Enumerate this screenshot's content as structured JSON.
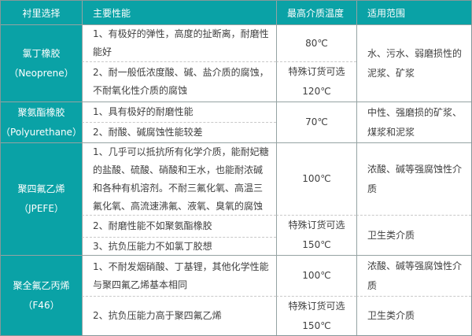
{
  "colors": {
    "teal": "#0aa2a6",
    "border_solid": "#95a3a3",
    "border_dashed": "#c9c9c9",
    "body_text": "#404040",
    "header_text": "#ffffff"
  },
  "header": {
    "lining": "衬里选择",
    "performance": "主要性能",
    "max_temp": "最高介质温度",
    "range": "适用范围"
  },
  "sections": [
    {
      "name": "氯丁橡胶",
      "alias": "（Neoprene）",
      "perf1": "1、有极好的弹性，高度的扯断离，耐磨性能好",
      "perf2": "2、耐一般低浓度酸、碱、盐介质的腐蚀，不耐氧化性介质的腐蚀",
      "temp1": "80℃",
      "temp2": "特殊订货可选\n120℃",
      "range1": "水、污水、弱磨损性的泥浆、矿浆"
    },
    {
      "name": "聚氨酯橡胶",
      "alias": "（Polyurethane）",
      "perf1": "1、具有极好的耐磨性能",
      "perf2": "2、耐酸、碱腐蚀性能较差",
      "temp1": "70℃",
      "range1": "中性、强磨损的矿浆、煤浆和泥浆"
    },
    {
      "name": "聚四氟乙烯",
      "alias": "（JPEFE）",
      "perf1": "1、几乎可以抵抗所有化学介质，能耐妃糖的盐酸、硫酸、硝酸和王水，也能耐浓碱和各种有机溶剂。不耐三氟化氧、高温三氟化氧、高流速沸氟、液氧、臭氧的腐蚀",
      "perf2": "2、耐磨性能不如聚氨酯橡胶",
      "perf3": "3、抗负压能力不如氯丁胶想",
      "temp1": "100℃",
      "temp2": "特殊订货可选\n150℃",
      "range1": "浓酸、碱等强腐蚀性介质",
      "range2": "卫生类介质"
    },
    {
      "name": "聚全氟乙丙烯",
      "alias": "（F46）",
      "perf1": "1、不耐发烟硝酸、丁基锂，其他化学性能与聚四氟乙烯基本相同",
      "perf2": "2、抗负压能力高于聚四氟乙烯",
      "temp1": "100℃",
      "temp2": "特殊订货可选\n150℃",
      "range1": "浓酸、碱等强腐蚀性介质",
      "range2": "卫生类介质"
    }
  ]
}
